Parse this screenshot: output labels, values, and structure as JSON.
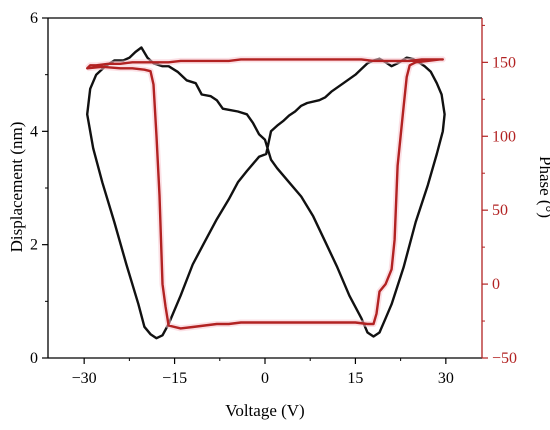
{
  "chart_data": {
    "type": "line",
    "xlabel": "Voltage (V)",
    "ylabel_left": "Displacement (nm)",
    "ylabel_right": "Phase (°)",
    "xlim": [
      -36,
      36
    ],
    "ylim_left": [
      0,
      6
    ],
    "ylim_right": [
      -50,
      180
    ],
    "x_ticks": [
      -30,
      -15,
      0,
      15,
      30
    ],
    "x_tick_labels": [
      "−30",
      "−15",
      "0",
      "15",
      "30"
    ],
    "y_left_ticks": [
      0,
      2,
      4,
      6
    ],
    "y_left_tick_labels": [
      "0",
      "2",
      "4",
      "6"
    ],
    "y_right_ticks": [
      -50,
      0,
      50,
      100,
      150
    ],
    "y_right_tick_labels": [
      "−50",
      "0",
      "50",
      "100",
      "150"
    ],
    "colors": {
      "displacement": "#111111",
      "phase": "#b22222",
      "phase_axis": "#b22222",
      "axis": "#000000"
    },
    "grid": false,
    "series": [
      {
        "axis": "left",
        "points": [
          [
            -29.5,
            4.3
          ],
          [
            -29,
            4.75
          ],
          [
            -28,
            5.0
          ],
          [
            -26.5,
            5.15
          ],
          [
            -25,
            5.25
          ],
          [
            -23.5,
            5.25
          ],
          [
            -22.5,
            5.3
          ],
          [
            -21.5,
            5.4
          ],
          [
            -20.5,
            5.48
          ],
          [
            -19.5,
            5.3
          ],
          [
            -18.5,
            5.2
          ],
          [
            -17,
            5.15
          ],
          [
            -16,
            5.15
          ],
          [
            -14.5,
            5.05
          ],
          [
            -13,
            4.9
          ],
          [
            -11.5,
            4.85
          ],
          [
            -10.5,
            4.65
          ],
          [
            -9,
            4.62
          ],
          [
            -8,
            4.55
          ],
          [
            -7,
            4.4
          ],
          [
            -6,
            4.38
          ],
          [
            -4.5,
            4.35
          ],
          [
            -3,
            4.3
          ],
          [
            -2,
            4.15
          ],
          [
            -1,
            3.95
          ],
          [
            0,
            3.85
          ],
          [
            1,
            3.5
          ],
          [
            2,
            3.35
          ],
          [
            4,
            3.1
          ],
          [
            6,
            2.85
          ],
          [
            8,
            2.5
          ],
          [
            10,
            2.05
          ],
          [
            12,
            1.6
          ],
          [
            14,
            1.1
          ],
          [
            16,
            0.7
          ],
          [
            17,
            0.45
          ],
          [
            18,
            0.38
          ],
          [
            19,
            0.45
          ],
          [
            20,
            0.7
          ],
          [
            21,
            0.95
          ],
          [
            23,
            1.6
          ],
          [
            25,
            2.4
          ],
          [
            27,
            3.05
          ],
          [
            28.5,
            3.6
          ],
          [
            29.5,
            4.0
          ],
          [
            29.8,
            4.3
          ],
          [
            29.3,
            4.65
          ],
          [
            28.5,
            4.85
          ],
          [
            27.5,
            5.05
          ],
          [
            26.5,
            5.15
          ],
          [
            25.5,
            5.22
          ],
          [
            24.5,
            5.28
          ],
          [
            23.5,
            5.3
          ],
          [
            22,
            5.2
          ],
          [
            21,
            5.15
          ],
          [
            20,
            5.22
          ],
          [
            19,
            5.28
          ],
          [
            18,
            5.25
          ],
          [
            17,
            5.2
          ],
          [
            16,
            5.1
          ],
          [
            15,
            5.0
          ],
          [
            13,
            4.85
          ],
          [
            11,
            4.7
          ],
          [
            10,
            4.6
          ],
          [
            9,
            4.55
          ],
          [
            7,
            4.5
          ],
          [
            6,
            4.45
          ],
          [
            5,
            4.35
          ],
          [
            4,
            4.28
          ],
          [
            3,
            4.18
          ],
          [
            2,
            4.1
          ],
          [
            1,
            4.0
          ],
          [
            0.2,
            3.6
          ],
          [
            -1,
            3.55
          ],
          [
            -3,
            3.3
          ],
          [
            -4.5,
            3.1
          ],
          [
            -6,
            2.8
          ],
          [
            -8,
            2.45
          ],
          [
            -10,
            2.05
          ],
          [
            -12,
            1.65
          ],
          [
            -14,
            1.1
          ],
          [
            -16,
            0.6
          ],
          [
            -17,
            0.4
          ],
          [
            -18,
            0.35
          ],
          [
            -19,
            0.42
          ],
          [
            -20,
            0.55
          ],
          [
            -21,
            0.95
          ],
          [
            -23,
            1.65
          ],
          [
            -25,
            2.4
          ],
          [
            -27,
            3.1
          ],
          [
            -28.5,
            3.7
          ],
          [
            -29.5,
            4.3
          ]
        ]
      },
      {
        "axis": "right",
        "points": [
          [
            -29.5,
            146
          ],
          [
            -27,
            147
          ],
          [
            -24,
            146
          ],
          [
            -22,
            146
          ],
          [
            -20,
            145
          ],
          [
            -19,
            144
          ],
          [
            -18.5,
            135
          ],
          [
            -18,
            100
          ],
          [
            -17.5,
            60
          ],
          [
            -17,
            0
          ],
          [
            -16.5,
            -15
          ],
          [
            -16,
            -28
          ],
          [
            -14,
            -30
          ],
          [
            -12,
            -29
          ],
          [
            -10,
            -28
          ],
          [
            -8,
            -27
          ],
          [
            -6,
            -27
          ],
          [
            -4,
            -26
          ],
          [
            -2,
            -26
          ],
          [
            0,
            -26
          ],
          [
            2,
            -26
          ],
          [
            5,
            -26
          ],
          [
            8,
            -26
          ],
          [
            12,
            -26
          ],
          [
            15,
            -26
          ],
          [
            17,
            -27
          ],
          [
            18,
            -27
          ],
          [
            18.5,
            -20
          ],
          [
            19,
            -5
          ],
          [
            20,
            0
          ],
          [
            20.5,
            5
          ],
          [
            21,
            10
          ],
          [
            21.5,
            30
          ],
          [
            22,
            80
          ],
          [
            22.5,
            100
          ],
          [
            23,
            120
          ],
          [
            23.5,
            140
          ],
          [
            24,
            148
          ],
          [
            25,
            150
          ],
          [
            27,
            151
          ],
          [
            29,
            152
          ],
          [
            29.5,
            152
          ],
          [
            28,
            152
          ],
          [
            26,
            152
          ],
          [
            24,
            151
          ],
          [
            22,
            151
          ],
          [
            20,
            151
          ],
          [
            18,
            151
          ],
          [
            16,
            152
          ],
          [
            14,
            152
          ],
          [
            12,
            152
          ],
          [
            10,
            152
          ],
          [
            8,
            152
          ],
          [
            6,
            152
          ],
          [
            4,
            152
          ],
          [
            2,
            152
          ],
          [
            0,
            152
          ],
          [
            -2,
            152
          ],
          [
            -4,
            152
          ],
          [
            -6,
            151
          ],
          [
            -8,
            151
          ],
          [
            -10,
            151
          ],
          [
            -12,
            151
          ],
          [
            -14,
            151
          ],
          [
            -16,
            150
          ],
          [
            -17,
            150
          ],
          [
            -18,
            150
          ],
          [
            -19,
            150
          ],
          [
            -20,
            150
          ],
          [
            -22,
            150
          ],
          [
            -24,
            149
          ],
          [
            -26,
            149
          ],
          [
            -28,
            148
          ],
          [
            -29,
            148
          ],
          [
            -29.5,
            146
          ]
        ]
      }
    ]
  }
}
